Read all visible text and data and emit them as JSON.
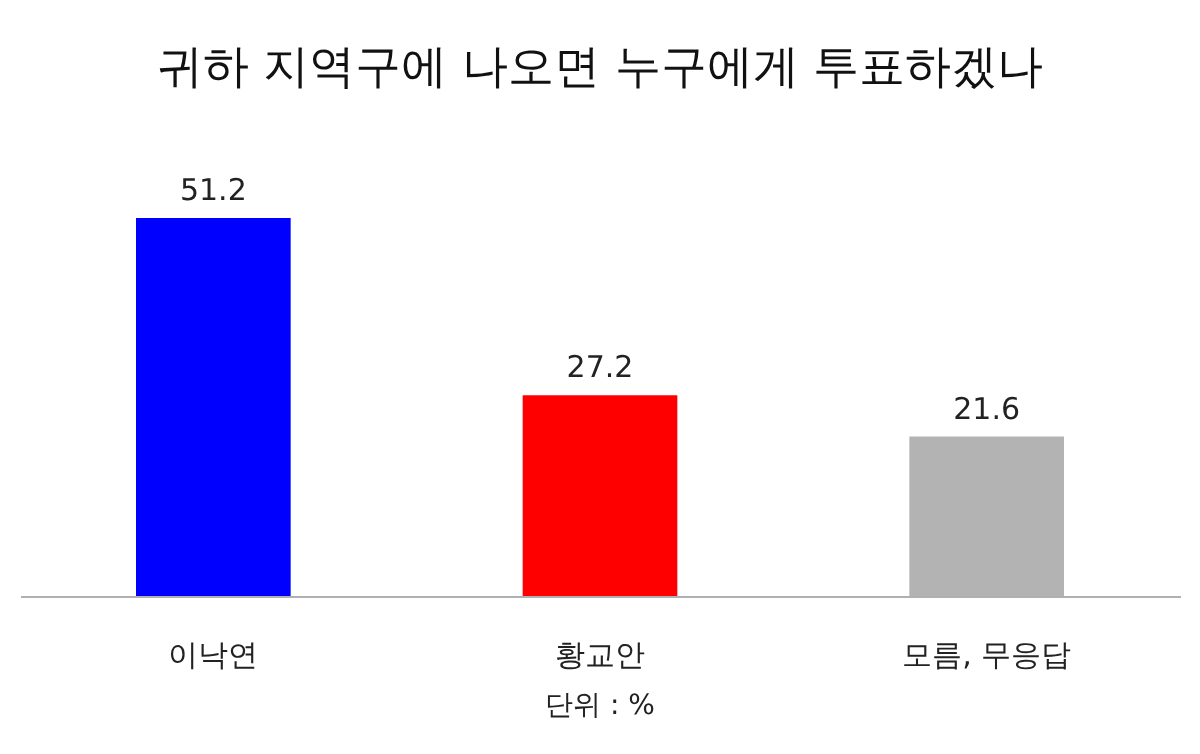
{
  "chart_data": {
    "type": "bar",
    "title": "귀하 지역구에 나오면 누구에게 투표하겠나",
    "categories": [
      "이낙연",
      "황교안",
      "모름, 무응답"
    ],
    "values": [
      51.2,
      27.2,
      21.6
    ],
    "colors": [
      "#0000ff",
      "#ff0000",
      "#b3b3b3"
    ],
    "tick_labels": "x",
    "grid": false,
    "data_labels": true,
    "annotations": [
      "단위 : %"
    ]
  }
}
